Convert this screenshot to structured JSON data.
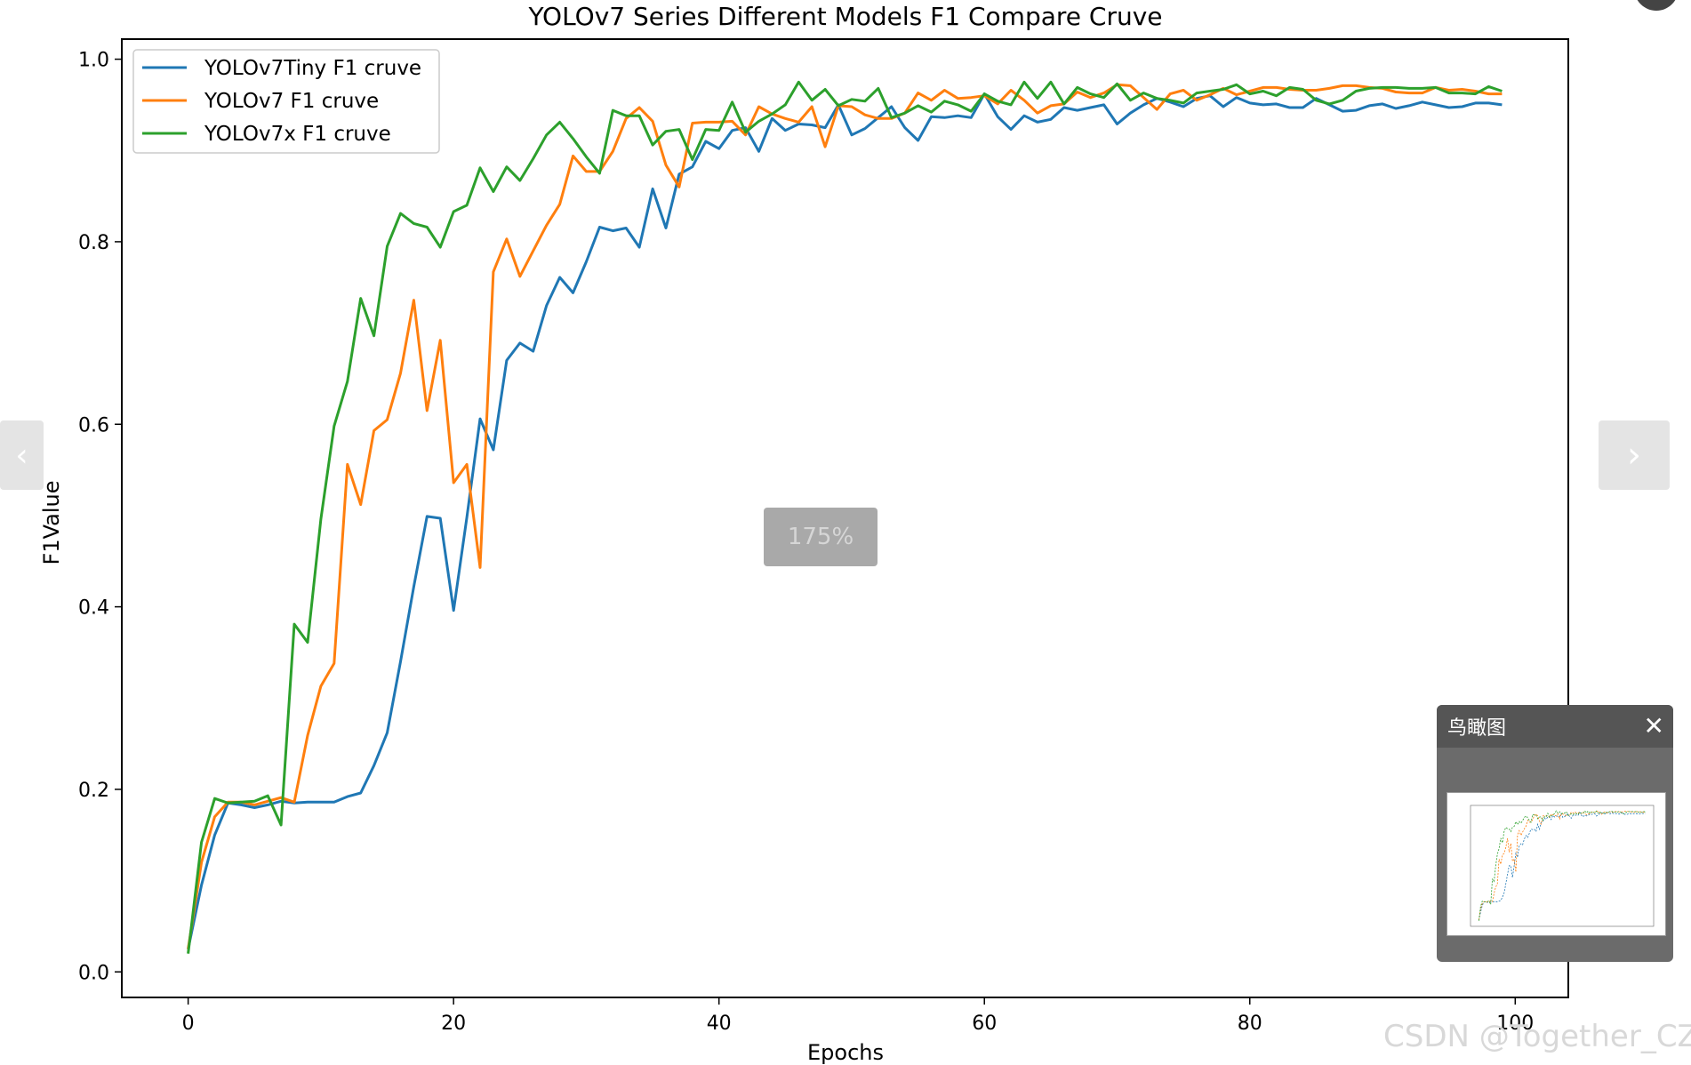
{
  "chart_data": {
    "type": "line",
    "title": "YOLOv7 Series Different Models F1 Compare Cruve",
    "xlabel": "Epochs",
    "ylabel": "F1Value",
    "xlim": [
      -5,
      104
    ],
    "ylim": [
      -0.028,
      1.022
    ],
    "xticks": [
      0,
      20,
      40,
      60,
      80,
      100
    ],
    "xtick_labels": [
      "0",
      "20",
      "40",
      "60",
      "80",
      "100"
    ],
    "yticks": [
      0.0,
      0.2,
      0.4,
      0.6,
      0.8,
      1.0
    ],
    "ytick_labels": [
      "0.0",
      "0.2",
      "0.4",
      "0.6",
      "0.8",
      "1.0"
    ],
    "grid": false,
    "legend": "top-left",
    "series": [
      {
        "name": "YOLOv7Tiny F1 cruve",
        "color": "#1f77b4",
        "values": [
          0.025,
          0.095,
          0.15,
          0.185,
          0.183,
          0.18,
          0.183,
          0.187,
          0.185,
          0.186,
          0.186,
          0.186,
          0.192,
          0.196,
          0.226,
          0.262,
          0.34,
          0.422,
          0.499,
          0.497,
          0.396,
          0.498,
          0.606,
          0.572,
          0.67,
          0.689,
          0.68,
          0.73,
          0.761,
          0.744,
          0.778,
          0.816,
          0.812,
          0.815,
          0.794,
          0.858,
          0.815,
          0.874,
          0.882,
          0.91,
          0.902,
          0.922,
          0.925,
          0.899,
          0.935,
          0.922,
          0.929,
          0.928,
          0.925,
          0.95,
          0.917,
          0.924,
          0.936,
          0.948,
          0.925,
          0.911,
          0.937,
          0.936,
          0.938,
          0.936,
          0.962,
          0.937,
          0.923,
          0.938,
          0.931,
          0.934,
          0.947,
          0.944,
          0.947,
          0.95,
          0.929,
          0.941,
          0.95,
          0.957,
          0.953,
          0.948,
          0.957,
          0.96,
          0.948,
          0.958,
          0.952,
          0.95,
          0.951,
          0.947,
          0.947,
          0.957,
          0.95,
          0.943,
          0.944,
          0.949,
          0.951,
          0.946,
          0.949,
          0.953,
          0.95,
          0.947,
          0.948,
          0.952,
          0.952,
          0.95
        ]
      },
      {
        "name": "YOLOv7 F1 cruve",
        "color": "#ff7f0e",
        "values": [
          0.025,
          0.12,
          0.17,
          0.186,
          0.186,
          0.183,
          0.187,
          0.191,
          0.186,
          0.259,
          0.313,
          0.338,
          0.556,
          0.512,
          0.593,
          0.605,
          0.656,
          0.736,
          0.615,
          0.692,
          0.536,
          0.556,
          0.443,
          0.767,
          0.803,
          0.762,
          0.79,
          0.818,
          0.841,
          0.894,
          0.877,
          0.877,
          0.899,
          0.935,
          0.947,
          0.932,
          0.884,
          0.86,
          0.93,
          0.931,
          0.931,
          0.932,
          0.917,
          0.948,
          0.94,
          0.935,
          0.931,
          0.948,
          0.904,
          0.949,
          0.948,
          0.939,
          0.935,
          0.935,
          0.941,
          0.963,
          0.955,
          0.966,
          0.957,
          0.958,
          0.96,
          0.951,
          0.966,
          0.955,
          0.941,
          0.949,
          0.951,
          0.964,
          0.958,
          0.963,
          0.972,
          0.971,
          0.958,
          0.945,
          0.962,
          0.966,
          0.955,
          0.961,
          0.968,
          0.961,
          0.965,
          0.969,
          0.969,
          0.967,
          0.966,
          0.966,
          0.968,
          0.971,
          0.971,
          0.969,
          0.968,
          0.964,
          0.963,
          0.963,
          0.969,
          0.966,
          0.967,
          0.965,
          0.962,
          0.962
        ]
      },
      {
        "name": "YOLOv7x F1 cruve",
        "color": "#2ca02c",
        "values": [
          0.02,
          0.142,
          0.19,
          0.185,
          0.186,
          0.187,
          0.193,
          0.161,
          0.381,
          0.361,
          0.496,
          0.598,
          0.647,
          0.738,
          0.697,
          0.795,
          0.831,
          0.82,
          0.816,
          0.794,
          0.833,
          0.84,
          0.881,
          0.855,
          0.882,
          0.867,
          0.891,
          0.917,
          0.931,
          0.913,
          0.893,
          0.875,
          0.944,
          0.938,
          0.938,
          0.906,
          0.921,
          0.923,
          0.89,
          0.923,
          0.922,
          0.953,
          0.92,
          0.932,
          0.94,
          0.95,
          0.975,
          0.955,
          0.967,
          0.949,
          0.956,
          0.954,
          0.968,
          0.936,
          0.941,
          0.949,
          0.942,
          0.954,
          0.95,
          0.943,
          0.962,
          0.954,
          0.95,
          0.975,
          0.957,
          0.975,
          0.951,
          0.969,
          0.962,
          0.958,
          0.973,
          0.955,
          0.963,
          0.957,
          0.955,
          0.952,
          0.963,
          0.965,
          0.967,
          0.972,
          0.962,
          0.965,
          0.96,
          0.969,
          0.967,
          0.955,
          0.951,
          0.955,
          0.965,
          0.968,
          0.969,
          0.969,
          0.968,
          0.968,
          0.969,
          0.963,
          0.963,
          0.962,
          0.97,
          0.965
        ]
      }
    ]
  },
  "ui": {
    "prev_icon": "‹",
    "next_icon": "›",
    "zoom_label": "175%",
    "birdseye_title": "鸟瞰图",
    "birdseye_close": "✕",
    "watermark": "CSDN @Together_CZ"
  }
}
